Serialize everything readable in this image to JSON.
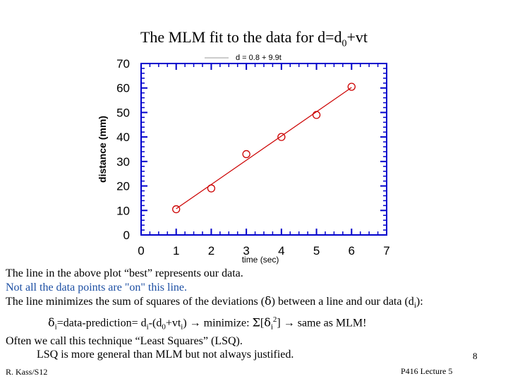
{
  "slide": {
    "title_main": "The MLM fit to the data for d=d",
    "title_sub": "0",
    "title_tail": "+vt",
    "footer_left": "R. Kass/S12",
    "footer_right": "P416 Lecture 5",
    "page_number": "8"
  },
  "text": {
    "line1": "The line in the above plot “best” represents our data.",
    "line2": "Not all the data points are \"on\" this line.",
    "line3_a": "The line minimizes the sum of squares of the deviations (",
    "line3_delta": "δ",
    "line3_b": ") between a line and our data (d",
    "line3_sub": "i",
    "line3_c": "):",
    "line4_delta": "δ",
    "line4_sub1": "i",
    "line4_a": "=data-prediction= d",
    "line4_sub2": "i",
    "line4_b": "-(d",
    "line4_sub3": "0",
    "line4_c": "+vt",
    "line4_sub4": "i",
    "line4_d": ")  →   minimize: ",
    "line4_sigma": "Σ",
    "line4_e": "[",
    "line4_delta2": "δ",
    "line4_sub5": "i",
    "line4_sup": "2",
    "line4_f": "] → same as MLM!",
    "line5": "Often we call this technique “Least Squares” (LSQ).",
    "line6": "LSQ is more general than MLM but not always justified."
  },
  "chart_data": {
    "type": "scatter",
    "xlabel": "time (sec)",
    "ylabel": "distance (mm)",
    "xlim": [
      0,
      7
    ],
    "ylim": [
      0,
      70
    ],
    "xticks": [
      0,
      1,
      2,
      3,
      4,
      5,
      6,
      7
    ],
    "yticks": [
      0,
      10,
      20,
      30,
      40,
      50,
      60,
      70
    ],
    "grid": false,
    "legend_position": "top-left",
    "fit_label": "d = 0.8  + 9.9t",
    "fit": {
      "intercept": 0.8,
      "slope": 9.9,
      "x_range": [
        1,
        6
      ]
    },
    "points": [
      {
        "x": 1,
        "y": 10.5
      },
      {
        "x": 2,
        "y": 19
      },
      {
        "x": 3,
        "y": 33
      },
      {
        "x": 4,
        "y": 40
      },
      {
        "x": 5,
        "y": 49
      },
      {
        "x": 6,
        "y": 60.5
      }
    ],
    "colors": {
      "axis": "#0000cc",
      "data": "#cc0000",
      "fit": "#cc0000"
    }
  }
}
